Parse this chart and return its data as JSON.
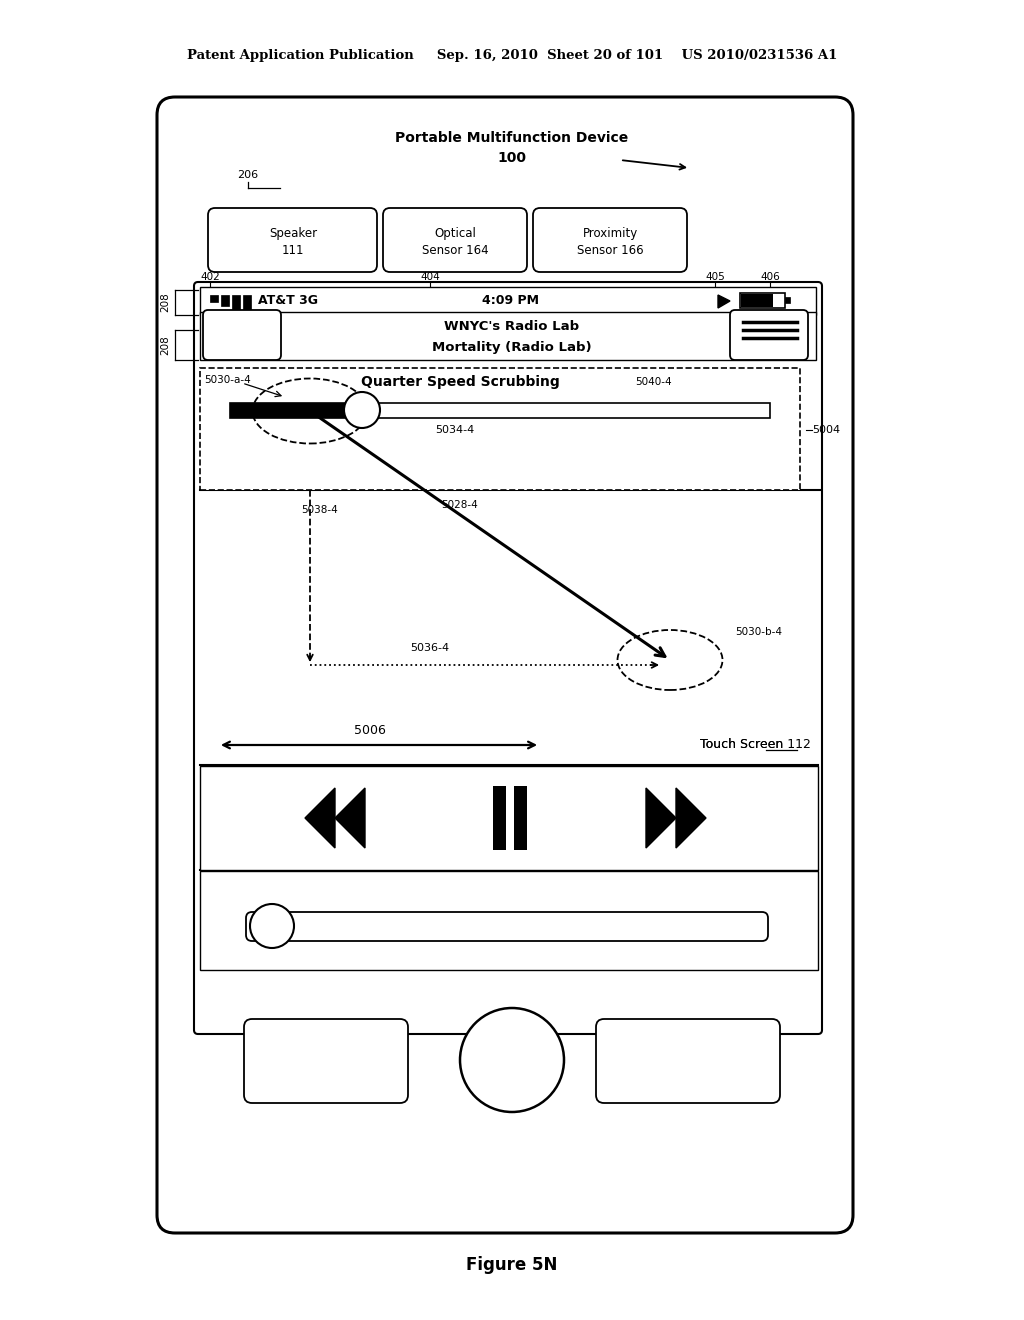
{
  "title_line1": "Patent Application Publication",
  "title_line2": "Sep. 16, 2010  Sheet 20 of 101   US 2010/0231536 A1",
  "device_label": "Portable Multifunction Device",
  "device_num": "100",
  "figure_label": "Figure 5N",
  "bg_color": "#ffffff",
  "line_color": "#000000",
  "status_text": "AT&T 3G",
  "time_text": "4:09 PM",
  "song_title": "WNYC's Radio Lab",
  "song_subtitle": "Mortality (Radio Lab)",
  "scrubbing_label": "Quarter Speed Scrubbing",
  "scrubbing_label_num": "5040-4",
  "label_5030a4": "5030-a-4",
  "label_5034_4": "5034-4",
  "label_5004": "5004",
  "label_5038_4": "5038-4",
  "label_5028_4": "5028-4",
  "label_5036_4": "5036-4",
  "label_5030b4": "5030-b-4",
  "label_5006": "5006",
  "touch_screen": "Touch Screen 112"
}
